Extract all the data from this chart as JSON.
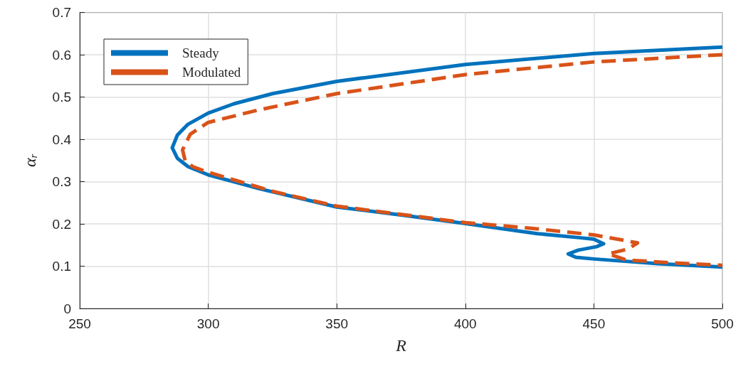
{
  "chart_data": {
    "type": "line",
    "xlabel": "R",
    "ylabel": "α$_{r}$",
    "xlim": [
      250,
      500
    ],
    "xticks": [
      250,
      300,
      350,
      400,
      450,
      500
    ],
    "ylim": [
      0,
      0.7
    ],
    "yticks": [
      0,
      0.1,
      0.2,
      0.3,
      0.4,
      0.5,
      0.6,
      0.7
    ],
    "grid": true,
    "legend": "top left",
    "marker": "none",
    "series": [
      {
        "name": "Steady",
        "color": "#0072bd",
        "line_style": "solid",
        "x": [
          500,
          450,
          400,
          350,
          325,
          310,
          300,
          292,
          288,
          286,
          288,
          292,
          300,
          320,
          350,
          375,
          400,
          428,
          445,
          450,
          453.8,
          451,
          444,
          440,
          443,
          450,
          475,
          500
        ],
        "values": [
          0.618,
          0.603,
          0.577,
          0.537,
          0.508,
          0.484,
          0.462,
          0.435,
          0.41,
          0.38,
          0.355,
          0.336,
          0.316,
          0.283,
          0.24,
          0.221,
          0.201,
          0.177,
          0.167,
          0.164,
          0.153,
          0.146,
          0.138,
          0.129,
          0.121,
          0.117,
          0.106,
          0.098
        ]
      },
      {
        "name": "Modulated",
        "color": "#d95319",
        "line_style": "dashed",
        "x": [
          500,
          450,
          400,
          350,
          320,
          300,
          293,
          290,
          291,
          294,
          300,
          325,
          350,
          400,
          425,
          450,
          460,
          467,
          463,
          455.6,
          463,
          470,
          480,
          500
        ],
        "values": [
          0.6,
          0.583,
          0.553,
          0.508,
          0.47,
          0.44,
          0.412,
          0.375,
          0.35,
          0.335,
          0.322,
          0.277,
          0.242,
          0.203,
          0.19,
          0.174,
          0.163,
          0.155,
          0.14,
          0.129,
          0.114,
          0.112,
          0.108,
          0.102
        ]
      }
    ]
  }
}
